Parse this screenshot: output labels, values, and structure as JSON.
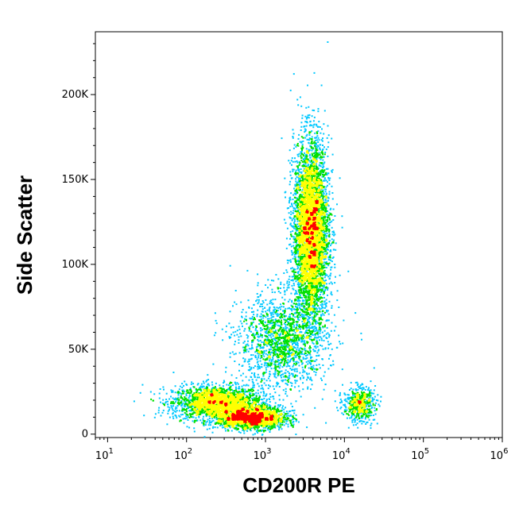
{
  "chart_data": {
    "type": "scatter",
    "plot_style": "density pseudocolor dot plot",
    "xlabel": "CD200R PE",
    "ylabel": "Side Scatter",
    "x_scale": "log",
    "xlim": [
      7,
      1000000
    ],
    "ylim": [
      -2000,
      237000
    ],
    "x_ticks": [
      {
        "value": 10,
        "base": "10",
        "exp": "1"
      },
      {
        "value": 100,
        "base": "10",
        "exp": "2"
      },
      {
        "value": 1000,
        "base": "10",
        "exp": "3"
      },
      {
        "value": 10000,
        "base": "10",
        "exp": "4"
      },
      {
        "value": 100000,
        "base": "10",
        "exp": "5"
      },
      {
        "value": 1000000,
        "base": "10",
        "exp": "6"
      }
    ],
    "y_ticks": [
      {
        "value": 0,
        "label": "0"
      },
      {
        "value": 50000,
        "label": "50K"
      },
      {
        "value": 100000,
        "label": "100K"
      },
      {
        "value": 150000,
        "label": "150K"
      },
      {
        "value": 200000,
        "label": "200K"
      }
    ],
    "grid": false,
    "populations": [
      {
        "x_center": 240,
        "y_center": 19000,
        "x_spread_decades": 0.28,
        "y_spread": 5000,
        "weight": 0.16
      },
      {
        "x_center": 650,
        "y_center": 10000,
        "x_spread_decades": 0.22,
        "y_spread": 3200,
        "weight": 0.14
      },
      {
        "x_center": 1600,
        "y_center": 55000,
        "x_spread_decades": 0.28,
        "y_spread": 14000,
        "weight": 0.12
      },
      {
        "x_center": 3700,
        "y_center": 120000,
        "x_spread_decades": 0.11,
        "y_spread": 26000,
        "weight": 0.36
      },
      {
        "x_center": 15000,
        "y_center": 18000,
        "x_spread_decades": 0.1,
        "y_spread": 5000,
        "weight": 0.04
      }
    ],
    "colors": {
      "low": "#0000ff",
      "mid_low": "#00c8ff",
      "mid": "#00e000",
      "mid_high": "#ffff00",
      "high": "#ff0000",
      "frame": "#000000"
    }
  }
}
